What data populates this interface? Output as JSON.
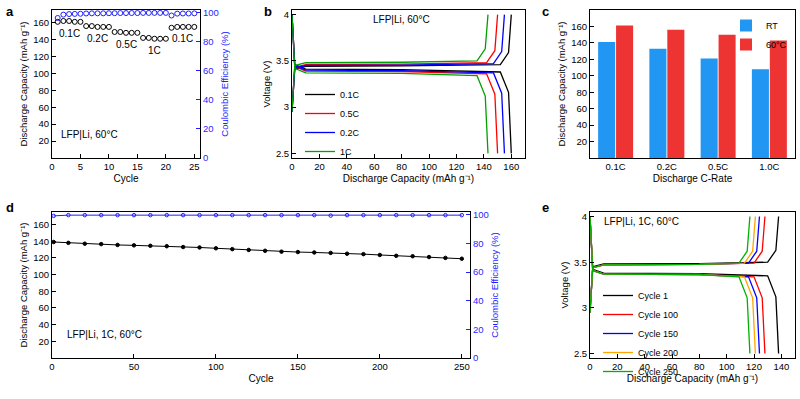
{
  "chart_data": [
    {
      "title": "a",
      "type": "scatter",
      "xlabel": "Cycle",
      "ylabel": "Discharge Capacity (mAh g⁻¹)",
      "y2label": "Coulombic Efficiency (%)",
      "xlim": [
        0,
        26
      ],
      "xticks": [
        0,
        5,
        10,
        15,
        20,
        25
      ],
      "ylim": [
        0,
        175
      ],
      "yticks": [
        20,
        40,
        60,
        80,
        100,
        120,
        140,
        160
      ],
      "y2lim": [
        0,
        102
      ],
      "y2ticks": [
        0,
        20,
        40,
        60,
        80,
        100
      ],
      "grid": false,
      "x": [
        1,
        2,
        3,
        4,
        5,
        6,
        7,
        8,
        9,
        10,
        11,
        12,
        13,
        14,
        15,
        16,
        17,
        18,
        19,
        20,
        21,
        22,
        23,
        24,
        25
      ],
      "series": [
        {
          "color": "#000000",
          "marker": "open_circle",
          "values": [
            161,
            162,
            162,
            161,
            161,
            156,
            156,
            155,
            155,
            155,
            149,
            149,
            148,
            148,
            148,
            142,
            142,
            141,
            141,
            141,
            154,
            155,
            155,
            155,
            155
          ]
        },
        {
          "color": "#1f1fff",
          "marker": "open_circle",
          "axis": "y2",
          "values": [
            96.5,
            98.8,
            99.2,
            99.3,
            99.4,
            99.6,
            99.7,
            99.7,
            99.7,
            99.8,
            99.8,
            99.9,
            99.9,
            99.9,
            99.9,
            100,
            100,
            100,
            100,
            100,
            98.2,
            99.5,
            99.6,
            99.6,
            99.7
          ]
        }
      ],
      "annotations": [
        {
          "text": "0.1C",
          "x": 3,
          "y": 147
        },
        {
          "text": "0.2C",
          "x": 8,
          "y": 141
        },
        {
          "text": "0.5C",
          "x": 13,
          "y": 134
        },
        {
          "text": "1C",
          "x": 18,
          "y": 127
        },
        {
          "text": "0.1C",
          "x": 23,
          "y": 141
        },
        {
          "text": "LFP|Li, 60°C",
          "x": 6.5,
          "y": 28
        }
      ]
    },
    {
      "title": "b",
      "type": "line",
      "xlabel": "Discharge Capacity (mAh g⁻¹)",
      "ylabel": "Voltage (V)",
      "xlim": [
        0,
        170
      ],
      "xticks": [
        0,
        20,
        40,
        60,
        80,
        100,
        120,
        140,
        160
      ],
      "ylim": [
        2.45,
        4.05
      ],
      "yticks": [
        2.5,
        3,
        3.5,
        4
      ],
      "grid": false,
      "legend": "left",
      "series": [
        {
          "name": "0.1C",
          "color": "#000000",
          "x": [
            0,
            2,
            10,
            80,
            152,
            158,
            160,
            160,
            0,
            2,
            10,
            80,
            152,
            158,
            160
          ],
          "values": [
            2.95,
            3.41,
            3.44,
            3.445,
            3.46,
            3.59,
            4.0,
            null,
            4.0,
            3.46,
            3.41,
            3.405,
            3.38,
            3.16,
            2.5
          ]
        },
        {
          "name": "0.5C",
          "color": "#ff0000",
          "x": [
            0,
            2,
            10,
            80,
            142,
            148,
            150,
            150,
            0,
            2,
            10,
            80,
            142,
            148,
            150
          ],
          "values": [
            2.95,
            3.43,
            3.46,
            3.465,
            3.48,
            3.61,
            4.0,
            null,
            4.0,
            3.44,
            3.39,
            3.385,
            3.36,
            3.14,
            2.5
          ]
        },
        {
          "name": "0.2C",
          "color": "#0000ff",
          "x": [
            0,
            2,
            10,
            80,
            147,
            153,
            155,
            155,
            0,
            2,
            10,
            80,
            147,
            153,
            155
          ],
          "values": [
            2.95,
            3.42,
            3.45,
            3.455,
            3.47,
            3.6,
            4.0,
            null,
            4.0,
            3.45,
            3.4,
            3.395,
            3.37,
            3.15,
            2.5
          ]
        },
        {
          "name": "1C",
          "color": "#00a000",
          "x": [
            0,
            2,
            10,
            80,
            135,
            141,
            143,
            143,
            0,
            2,
            10,
            80,
            135,
            141,
            143
          ],
          "values": [
            2.95,
            3.45,
            3.48,
            3.485,
            3.5,
            3.63,
            4.0,
            null,
            4.0,
            3.42,
            3.37,
            3.365,
            3.34,
            3.12,
            2.5
          ]
        }
      ],
      "annotations": [
        {
          "text": "LFP|Li, 60°C",
          "x": 80,
          "y": 3.95
        }
      ]
    },
    {
      "title": "c",
      "type": "bar",
      "xlabel": "Discharge C-Rate",
      "ylabel": "Discharge Capacity (mAh g⁻¹)",
      "categories": [
        "0.1C",
        "0.2C",
        "0.5C",
        "1.0C"
      ],
      "ylim": [
        0,
        180
      ],
      "yticks": [
        20,
        40,
        60,
        80,
        100,
        120,
        140,
        160
      ],
      "grid": false,
      "legend": "topright",
      "series": [
        {
          "name": "RT",
          "color": "#2196f3",
          "values": [
            141,
            133,
            121,
            108
          ]
        },
        {
          "name": "60°C",
          "color": "#ee3333",
          "values": [
            161,
            156,
            150,
            143
          ]
        }
      ]
    },
    {
      "title": "d",
      "type": "scatter",
      "xlabel": "Cycle",
      "ylabel": "Discharge Capacity (mAh g⁻¹)",
      "y2label": "Coulombic Efficiency (%)",
      "xlim": [
        0,
        255
      ],
      "xticks": [
        0,
        50,
        100,
        150,
        200,
        250
      ],
      "ylim": [
        0,
        175
      ],
      "yticks": [
        20,
        40,
        60,
        80,
        100,
        120,
        140,
        160
      ],
      "y2lim": [
        0,
        102
      ],
      "y2ticks": [
        0,
        20,
        40,
        60,
        80,
        100
      ],
      "grid": false,
      "x": [
        1,
        10,
        20,
        30,
        40,
        50,
        60,
        70,
        80,
        90,
        100,
        110,
        120,
        130,
        140,
        150,
        160,
        170,
        180,
        190,
        200,
        210,
        220,
        230,
        240,
        250
      ],
      "series": [
        {
          "color": "#000000",
          "marker": "circle",
          "line_style": "solid",
          "values": [
            139,
            138,
            137,
            136.5,
            135.5,
            135,
            134.5,
            134,
            133,
            132.5,
            131.5,
            130.5,
            129.5,
            128.5,
            127.5,
            127,
            126.5,
            126,
            125,
            124.5,
            123.5,
            122.5,
            122,
            121,
            120,
            119
          ]
        },
        {
          "color": "#1f1fff",
          "marker": "open_circle",
          "line_style": "solid",
          "axis": "y2",
          "values": [
            99.3,
            99.8,
            99.8,
            99.8,
            99.8,
            99.8,
            99.8,
            99.8,
            99.8,
            99.8,
            99.8,
            99.8,
            99.8,
            99.8,
            99.8,
            99.8,
            99.8,
            99.5,
            99.8,
            99.8,
            99.8,
            99.8,
            99.8,
            99.8,
            99.8,
            99.8
          ]
        }
      ],
      "annotations": [
        {
          "text": "LFP|Li, 1C, 60°C",
          "x": 32,
          "y": 28
        }
      ]
    },
    {
      "title": "e",
      "type": "line",
      "xlabel": "Discharge Capacity (mAh g⁻¹)",
      "ylabel": "Voltage (V)",
      "xlim": [
        0,
        150
      ],
      "xticks": [
        0,
        20,
        40,
        60,
        80,
        100,
        120,
        140
      ],
      "ylim": [
        2.45,
        4.05
      ],
      "yticks": [
        2.5,
        3,
        3.5,
        4
      ],
      "grid": false,
      "legend": "left",
      "series": [
        {
          "name": "Cycle 1",
          "color": "#000000",
          "x": [
            0,
            2,
            10,
            80,
            130,
            136,
            138,
            138,
            0,
            2,
            10,
            80,
            130,
            136,
            138
          ],
          "values": [
            2.95,
            3.45,
            3.48,
            3.485,
            3.5,
            3.63,
            4.0,
            null,
            4.0,
            3.42,
            3.38,
            3.375,
            3.35,
            3.12,
            2.5
          ]
        },
        {
          "name": "Cycle 100",
          "color": "#ff0000",
          "x": [
            0,
            2,
            10,
            80,
            120,
            126,
            128,
            128,
            0,
            2,
            10,
            80,
            120,
            126,
            128
          ],
          "values": [
            2.95,
            3.44,
            3.47,
            3.475,
            3.49,
            3.62,
            4.0,
            null,
            4.0,
            3.41,
            3.37,
            3.365,
            3.34,
            3.11,
            2.5
          ]
        },
        {
          "name": "Cycle 150",
          "color": "#0000ff",
          "x": [
            0,
            2,
            10,
            80,
            116,
            122,
            124,
            124,
            0,
            2,
            10,
            80,
            116,
            122,
            124
          ],
          "values": [
            2.95,
            3.44,
            3.47,
            3.475,
            3.49,
            3.62,
            4.0,
            null,
            4.0,
            3.41,
            3.37,
            3.365,
            3.34,
            3.11,
            2.5
          ]
        },
        {
          "name": "Cycle 200",
          "color": "#ffa500",
          "x": [
            0,
            2,
            10,
            80,
            113,
            119,
            121,
            121,
            0,
            2,
            10,
            80,
            113,
            119,
            121
          ],
          "values": [
            2.95,
            3.44,
            3.47,
            3.475,
            3.49,
            3.62,
            4.0,
            null,
            4.0,
            3.41,
            3.37,
            3.365,
            3.34,
            3.11,
            2.5
          ]
        },
        {
          "name": "Cycle 250",
          "color": "#00b000",
          "x": [
            0,
            2,
            10,
            80,
            109,
            115,
            117,
            117,
            0,
            2,
            10,
            80,
            109,
            115,
            117
          ],
          "values": [
            2.95,
            3.44,
            3.47,
            3.475,
            3.49,
            3.62,
            4.0,
            null,
            4.0,
            3.41,
            3.37,
            3.365,
            3.34,
            3.11,
            2.5
          ]
        }
      ],
      "annotations": [
        {
          "text": "LFP|Li, 1C, 60°C",
          "x": 38,
          "y": 3.95
        }
      ]
    }
  ]
}
